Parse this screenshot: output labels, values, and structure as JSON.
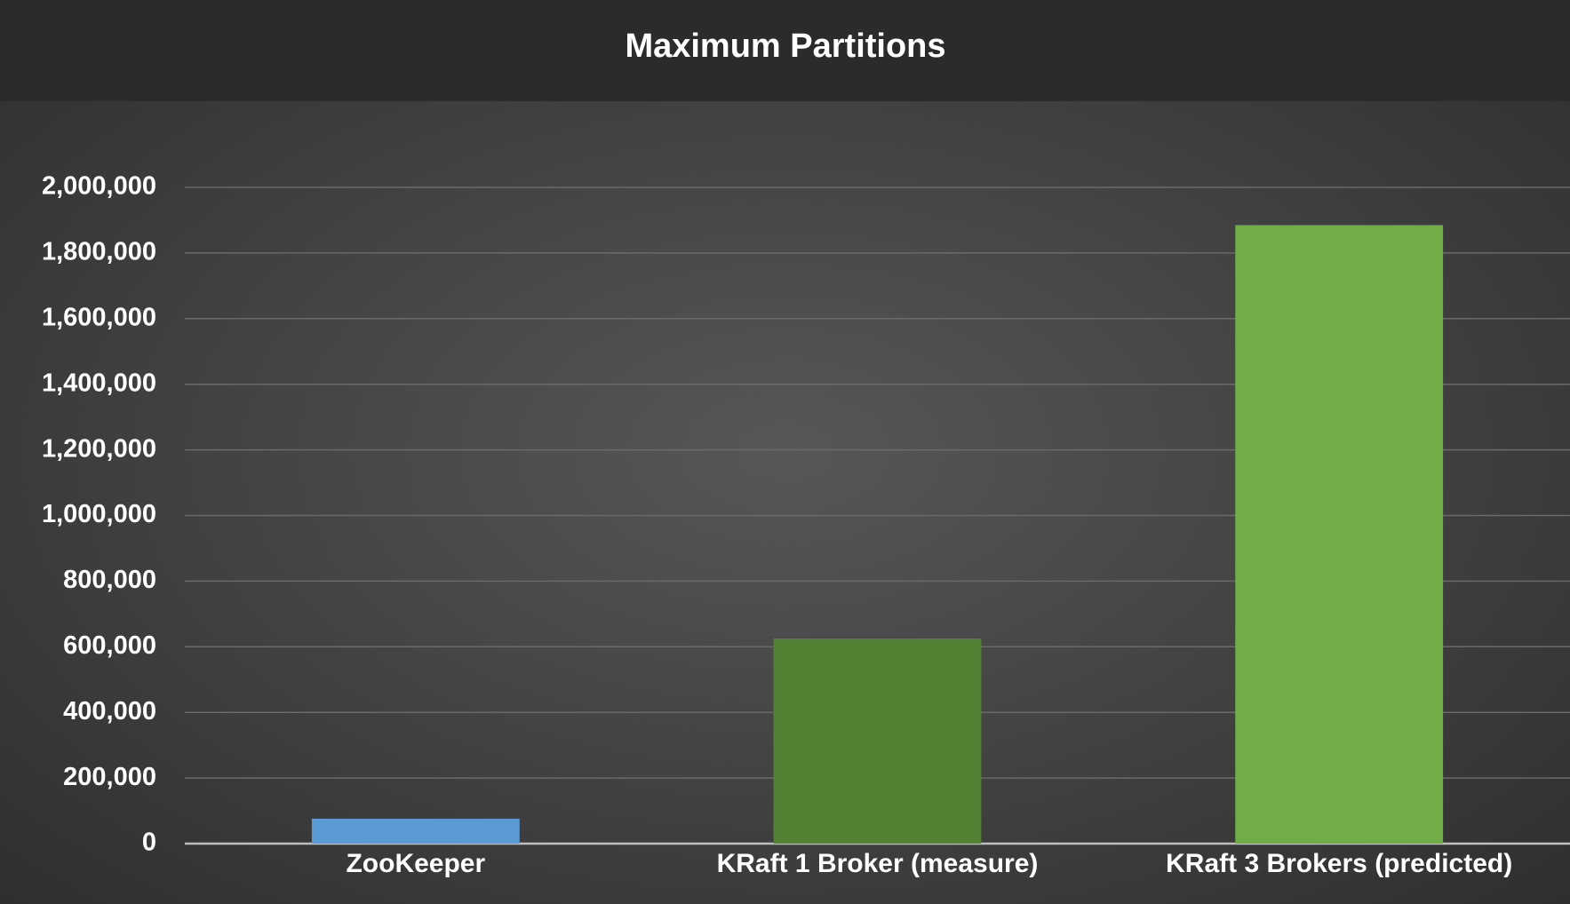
{
  "chart_data": {
    "type": "bar",
    "title": "Maximum Partitions",
    "categories": [
      "ZooKeeper",
      "KRaft 1 Broker (measure)",
      "KRaft 3 Brokers (predicted)"
    ],
    "values": [
      76000,
      625000,
      1885000
    ],
    "colors": [
      "#5b9bd5",
      "#548235",
      "#70ad47"
    ],
    "ylim": [
      0,
      2000000
    ],
    "yticks": [
      0,
      {
        "value": 200000,
        "label": "200,000"
      },
      {
        "value": 400000,
        "label": "400,000"
      },
      {
        "value": 600000,
        "label": "600,000"
      },
      {
        "value": 800000,
        "label": "800,000"
      },
      {
        "value": 1000000,
        "label": "1,000,000"
      },
      {
        "value": 1200000,
        "label": "1,200,000"
      },
      {
        "value": 1400000,
        "label": "1,400,000"
      },
      {
        "value": 1600000,
        "label": "1,600,000"
      },
      {
        "value": 1800000,
        "label": "1,800,000"
      },
      {
        "value": 2000000,
        "label": "2,000,000"
      }
    ],
    "grid": true
  }
}
